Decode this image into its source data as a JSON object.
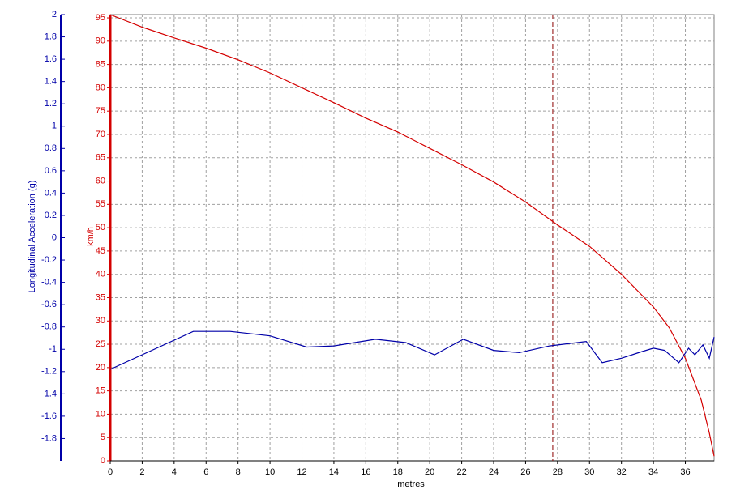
{
  "chart_data": {
    "type": "line",
    "x_label": "metres",
    "y_label": "km/h",
    "y2_label": "Longitudinal Acceleration (g)",
    "xlim": [
      0,
      37.8
    ],
    "ylim": [
      0,
      95.7
    ],
    "y2lim": [
      -2,
      2
    ],
    "xticks": [
      0,
      2,
      4,
      6,
      8,
      10,
      12,
      14,
      16,
      18,
      20,
      22,
      24,
      26,
      28,
      30,
      32,
      34,
      36
    ],
    "yticks": [
      0,
      5,
      10,
      15,
      20,
      25,
      30,
      35,
      40,
      45,
      50,
      55,
      60,
      65,
      70,
      75,
      80,
      85,
      90,
      95
    ],
    "y2ticks": [
      -1.8,
      -1.6,
      -1.4,
      -1.2,
      -1,
      -0.8,
      -0.6,
      -0.4,
      -0.2,
      0,
      0.2,
      0.4,
      0.6,
      0.8,
      1,
      1.2,
      1.4,
      1.6,
      1.8,
      2
    ],
    "grid": true,
    "cursor_x": 27.7,
    "series": [
      {
        "color": "#d40000",
        "axis": "y",
        "x": [
          0,
          2,
          4,
          6,
          8,
          10,
          12,
          14,
          16,
          18,
          20,
          22,
          24,
          26,
          28,
          30,
          32,
          34,
          35,
          36,
          37,
          37.5,
          37.8
        ],
        "values": [
          95.7,
          93,
          90.7,
          88.5,
          86,
          83.2,
          80,
          76.8,
          73.5,
          70.5,
          67,
          63.5,
          59.8,
          55.5,
          50.6,
          46,
          40,
          33,
          28.5,
          22,
          13,
          6,
          1
        ]
      },
      {
        "color": "#0000a8",
        "axis": "y2",
        "x": [
          0,
          5.2,
          7.5,
          10,
          12.3,
          14,
          16.6,
          18.5,
          20.3,
          22.1,
          24,
          25.6,
          27.5,
          29.8,
          30.8,
          32,
          33.3,
          34,
          34.7,
          35.6,
          36.2,
          36.6,
          37.1,
          37.5,
          37.8
        ],
        "values": [
          -1.18,
          -0.84,
          -0.84,
          -0.88,
          -0.98,
          -0.97,
          -0.91,
          -0.94,
          -1.05,
          -0.91,
          -1.01,
          -1.03,
          -0.97,
          -0.93,
          -1.12,
          -1.08,
          -1.02,
          -0.99,
          -1.01,
          -1.12,
          -0.99,
          -1.05,
          -0.96,
          -1.08,
          -0.89
        ]
      }
    ]
  }
}
